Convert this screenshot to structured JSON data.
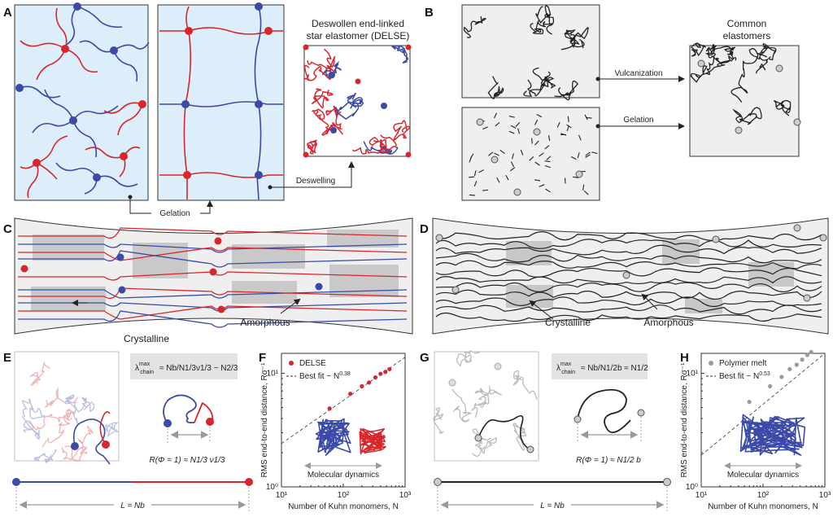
{
  "panels": {
    "A": {
      "label": "A",
      "title_line1": "Deswollen end-linked",
      "title_line2": "star elastomer (DELSE)",
      "gelation": "Gelation",
      "deswelling": "Deswelling"
    },
    "B": {
      "label": "B",
      "title_line1": "Common",
      "title_line2": "elastomers",
      "vulcanization": "Vulcanization",
      "gelation": "Gelation"
    },
    "C": {
      "label": "C",
      "crystalline": "Crystalline",
      "amorphous": "Amorphous"
    },
    "D": {
      "label": "D",
      "crystalline": "Crystalline",
      "amorphous": "Amorphous"
    },
    "E": {
      "label": "E",
      "formula": "λchain max ≈ Nb / (N^1/3 ν^1/3) ~ N^2/3",
      "formula_lhs": "λ",
      "formula_rhs": "≈ Nb/N1/3ν1/3 ~ N2/3",
      "rms": "R(Φ = 1) ≈ N1/3 ν1/3",
      "length": "L = Nb"
    },
    "G": {
      "label": "G",
      "formula": "λchain max ≈ Nb / (N^1/2 b) ≈ N^1/2",
      "formula_rhs": "≈ Nb/N1/2b ≈ N1/2",
      "rms": "R(Φ = 1) ≈ N1/2 b",
      "length": "L = Nb"
    },
    "F": {
      "label": "F"
    },
    "H": {
      "label": "H"
    }
  },
  "colors": {
    "red": "#d8262d",
    "blue": "#3b4aa6",
    "gel_bg": "#dceefa",
    "grey_bg": "#efefef",
    "dark": "#222222"
  },
  "chart_data": [
    {
      "type": "scatter",
      "panel": "F",
      "xlabel": "Number of Kuhn monomers, N",
      "ylabel": "RMS end-to-end distance, Rσ⁻¹",
      "xscale": "log",
      "yscale": "log",
      "xlim": [
        10,
        1000
      ],
      "ylim": [
        1,
        15
      ],
      "x_ticks": [
        "10¹",
        "10²",
        "10³"
      ],
      "y_ticks": [
        "10⁰",
        "10¹"
      ],
      "series": [
        {
          "name": "DELSE",
          "color": "#d8262d",
          "x": [
            60,
            130,
            200,
            260,
            330,
            400,
            480,
            560
          ],
          "y": [
            4.9,
            6.6,
            7.7,
            8.3,
            9.2,
            9.9,
            10.3,
            10.9
          ]
        }
      ],
      "fit": {
        "name": "Best fit ~ N",
        "exponent": "0.38"
      },
      "inset_label": "Molecular dynamics"
    },
    {
      "type": "scatter",
      "panel": "H",
      "xlabel": "Number of Kuhn monomers, N",
      "ylabel": "RMS end-to-end distance, Rσ⁻¹",
      "xscale": "log",
      "yscale": "log",
      "xlim": [
        10,
        1000
      ],
      "ylim": [
        1,
        15
      ],
      "x_ticks": [
        "10¹",
        "10²",
        "10³"
      ],
      "y_ticks": [
        "10⁰",
        "10¹"
      ],
      "series": [
        {
          "name": "Polymer melt",
          "color": "#9a9a9a",
          "x": [
            60,
            130,
            200,
            270,
            350,
            430,
            520,
            600
          ],
          "y": [
            5.6,
            7.7,
            9.3,
            10.9,
            11.9,
            13.2,
            14.5,
            15.4
          ]
        }
      ],
      "fit": {
        "name": "Best fit ~ N",
        "exponent": "0.53"
      },
      "inset_label": "Molecular dynamics"
    }
  ]
}
